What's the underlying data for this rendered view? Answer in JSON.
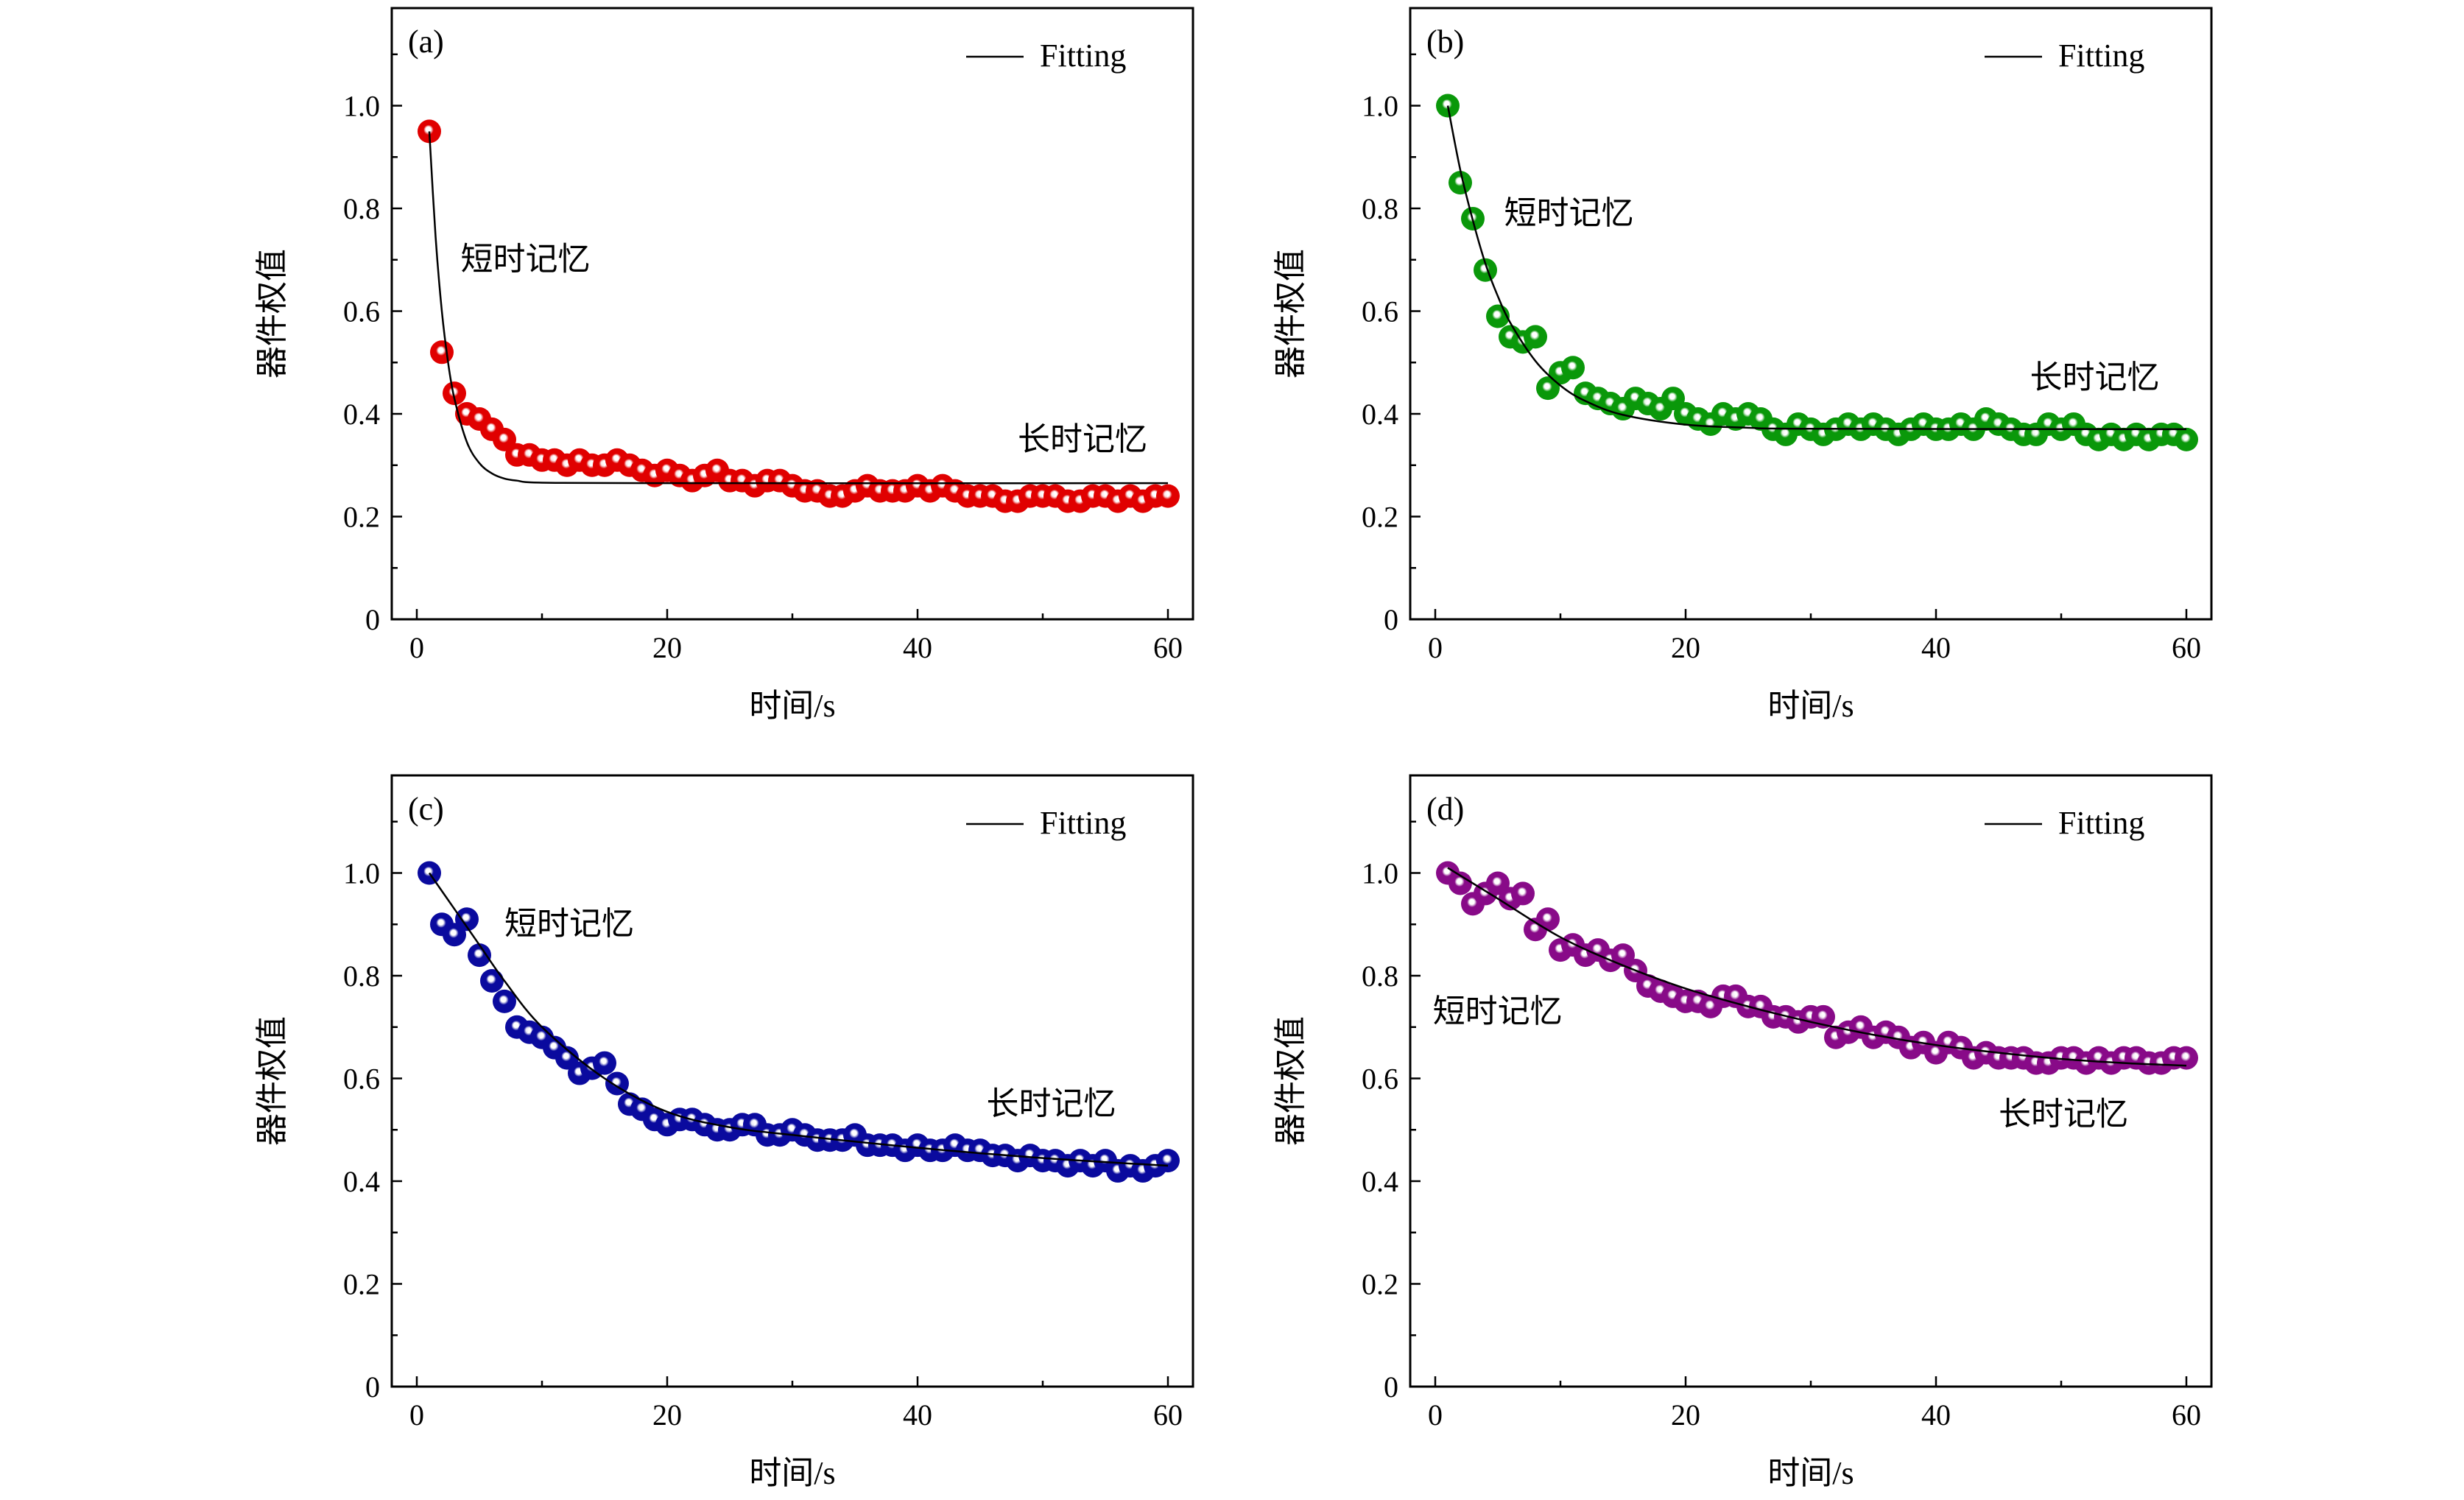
{
  "chart_data": [
    {
      "type": "scatter",
      "panel_label": "(a)",
      "xlabel": "时间/s",
      "ylabel": "器件权值",
      "xlim": [
        -2,
        62
      ],
      "ylim": [
        0,
        1.19
      ],
      "xticks": [
        0,
        20,
        40,
        60
      ],
      "xtick_labels": [
        "0",
        "20",
        "40",
        "60"
      ],
      "yticks": [
        0,
        0.2,
        0.4,
        0.6,
        0.8,
        1.0
      ],
      "ytick_labels": [
        "0",
        "0.2",
        "0.4",
        "0.6",
        "0.8",
        "1.0"
      ],
      "legend": {
        "label": "Fitting",
        "placement": "top-right"
      },
      "annotations": [
        "短时记忆",
        "长时记忆"
      ],
      "color": "#e00000",
      "x": [
        1,
        2,
        3,
        4,
        5,
        6,
        7,
        8,
        9,
        10,
        11,
        12,
        13,
        14,
        15,
        16,
        17,
        18,
        19,
        20,
        21,
        22,
        23,
        24,
        25,
        26,
        27,
        28,
        29,
        30,
        31,
        32,
        33,
        34,
        35,
        36,
        37,
        38,
        39,
        40,
        41,
        42,
        43,
        44,
        45,
        46,
        47,
        48,
        49,
        50,
        51,
        52,
        53,
        54,
        55,
        56,
        57,
        58,
        59,
        60
      ],
      "y": [
        0.95,
        0.52,
        0.44,
        0.4,
        0.39,
        0.37,
        0.35,
        0.32,
        0.32,
        0.31,
        0.31,
        0.3,
        0.31,
        0.3,
        0.3,
        0.31,
        0.3,
        0.29,
        0.28,
        0.29,
        0.28,
        0.27,
        0.28,
        0.29,
        0.27,
        0.27,
        0.26,
        0.27,
        0.27,
        0.26,
        0.25,
        0.25,
        0.24,
        0.24,
        0.25,
        0.26,
        0.25,
        0.25,
        0.25,
        0.26,
        0.25,
        0.26,
        0.25,
        0.24,
        0.24,
        0.24,
        0.23,
        0.23,
        0.24,
        0.24,
        0.24,
        0.23,
        0.23,
        0.24,
        0.24,
        0.23,
        0.24,
        0.23,
        0.24,
        0.24
      ],
      "fit": [
        [
          1,
          0.95
        ],
        [
          1.5,
          0.745
        ],
        [
          2,
          0.6
        ],
        [
          2.5,
          0.5
        ],
        [
          3,
          0.43
        ],
        [
          4,
          0.345
        ],
        [
          5,
          0.304
        ],
        [
          6,
          0.284
        ],
        [
          7,
          0.274
        ],
        [
          8,
          0.27
        ],
        [
          10,
          0.266
        ],
        [
          20,
          0.265
        ],
        [
          60,
          0.265
        ]
      ]
    },
    {
      "type": "scatter",
      "panel_label": "(b)",
      "xlabel": "时间/s",
      "ylabel": "器件权值",
      "xlim": [
        -2,
        62
      ],
      "ylim": [
        0,
        1.19
      ],
      "xticks": [
        0,
        20,
        40,
        60
      ],
      "xtick_labels": [
        "0",
        "20",
        "40",
        "60"
      ],
      "yticks": [
        0,
        0.2,
        0.4,
        0.6,
        0.8,
        1.0
      ],
      "ytick_labels": [
        "0",
        "0.2",
        "0.4",
        "0.6",
        "0.8",
        "1.0"
      ],
      "legend": {
        "label": "Fitting",
        "placement": "top-right"
      },
      "annotations": [
        "短时记忆",
        "长时记忆"
      ],
      "color": "#0a980a",
      "x": [
        1,
        2,
        3,
        4,
        5,
        6,
        7,
        8,
        9,
        10,
        11,
        12,
        13,
        14,
        15,
        16,
        17,
        18,
        19,
        20,
        21,
        22,
        23,
        24,
        25,
        26,
        27,
        28,
        29,
        30,
        31,
        32,
        33,
        34,
        35,
        36,
        37,
        38,
        39,
        40,
        41,
        42,
        43,
        44,
        45,
        46,
        47,
        48,
        49,
        50,
        51,
        52,
        53,
        54,
        55,
        56,
        57,
        58,
        59,
        60
      ],
      "y": [
        1.0,
        0.85,
        0.78,
        0.68,
        0.59,
        0.55,
        0.54,
        0.55,
        0.45,
        0.48,
        0.49,
        0.44,
        0.43,
        0.42,
        0.41,
        0.43,
        0.42,
        0.41,
        0.43,
        0.4,
        0.39,
        0.38,
        0.4,
        0.39,
        0.4,
        0.39,
        0.37,
        0.36,
        0.38,
        0.37,
        0.36,
        0.37,
        0.38,
        0.37,
        0.38,
        0.37,
        0.36,
        0.37,
        0.38,
        0.37,
        0.37,
        0.38,
        0.37,
        0.39,
        0.38,
        0.37,
        0.36,
        0.36,
        0.38,
        0.37,
        0.38,
        0.36,
        0.35,
        0.36,
        0.35,
        0.36,
        0.35,
        0.36,
        0.36,
        0.35
      ],
      "fit": [
        [
          1,
          1.0
        ],
        [
          2,
          0.875
        ],
        [
          3,
          0.777
        ],
        [
          4,
          0.693
        ],
        [
          5,
          0.629
        ],
        [
          6,
          0.577
        ],
        [
          8,
          0.503
        ],
        [
          10,
          0.455
        ],
        [
          12,
          0.425
        ],
        [
          15,
          0.398
        ],
        [
          20,
          0.379
        ],
        [
          25,
          0.373
        ],
        [
          30,
          0.371
        ],
        [
          60,
          0.37
        ]
      ]
    },
    {
      "type": "scatter",
      "panel_label": "(c)",
      "xlabel": "时间/s",
      "ylabel": "器件权值",
      "xlim": [
        -2,
        62
      ],
      "ylim": [
        0,
        1.19
      ],
      "xticks": [
        0,
        20,
        40,
        60
      ],
      "xtick_labels": [
        "0",
        "20",
        "40",
        "60"
      ],
      "yticks": [
        0,
        0.2,
        0.4,
        0.6,
        0.8,
        1.0
      ],
      "ytick_labels": [
        "0",
        "0.2",
        "0.4",
        "0.6",
        "0.8",
        "1.0"
      ],
      "legend": {
        "label": "Fitting",
        "placement": "top-right"
      },
      "annotations": [
        "短时记忆",
        "长时记忆"
      ],
      "color": "#0a0a9e",
      "x": [
        1,
        2,
        3,
        4,
        5,
        6,
        7,
        8,
        9,
        10,
        11,
        12,
        13,
        14,
        15,
        16,
        17,
        18,
        19,
        20,
        21,
        22,
        23,
        24,
        25,
        26,
        27,
        28,
        29,
        30,
        31,
        32,
        33,
        34,
        35,
        36,
        37,
        38,
        39,
        40,
        41,
        42,
        43,
        44,
        45,
        46,
        47,
        48,
        49,
        50,
        51,
        52,
        53,
        54,
        55,
        56,
        57,
        58,
        59,
        60
      ],
      "y": [
        1.0,
        0.9,
        0.88,
        0.91,
        0.84,
        0.79,
        0.75,
        0.7,
        0.69,
        0.68,
        0.66,
        0.64,
        0.61,
        0.62,
        0.63,
        0.59,
        0.55,
        0.54,
        0.52,
        0.51,
        0.52,
        0.52,
        0.51,
        0.5,
        0.5,
        0.51,
        0.51,
        0.49,
        0.49,
        0.5,
        0.49,
        0.48,
        0.48,
        0.48,
        0.49,
        0.47,
        0.47,
        0.47,
        0.46,
        0.47,
        0.46,
        0.46,
        0.47,
        0.46,
        0.46,
        0.45,
        0.45,
        0.44,
        0.45,
        0.44,
        0.44,
        0.43,
        0.44,
        0.43,
        0.44,
        0.42,
        0.43,
        0.42,
        0.43,
        0.44
      ],
      "fit": [
        [
          1,
          1.0
        ],
        [
          3,
          0.93
        ],
        [
          5,
          0.86
        ],
        [
          7,
          0.79
        ],
        [
          10,
          0.7
        ],
        [
          15,
          0.6
        ],
        [
          20,
          0.535
        ],
        [
          25,
          0.505
        ],
        [
          30,
          0.49
        ],
        [
          40,
          0.465
        ],
        [
          50,
          0.445
        ],
        [
          60,
          0.43
        ]
      ]
    },
    {
      "type": "scatter",
      "panel_label": "(d)",
      "xlabel": "时间/s",
      "ylabel": "器件权值",
      "xlim": [
        -2,
        62
      ],
      "ylim": [
        0,
        1.19
      ],
      "xticks": [
        0,
        20,
        40,
        60
      ],
      "xtick_labels": [
        "0",
        "20",
        "40",
        "60"
      ],
      "yticks": [
        0,
        0.2,
        0.4,
        0.6,
        0.8,
        1.0
      ],
      "ytick_labels": [
        "0",
        "0.2",
        "0.4",
        "0.6",
        "0.8",
        "1.0"
      ],
      "legend": {
        "label": "Fitting",
        "placement": "top-right"
      },
      "annotations": [
        "短时记忆",
        "长时记忆"
      ],
      "color": "#880a88",
      "x": [
        1,
        2,
        3,
        4,
        5,
        6,
        7,
        8,
        9,
        10,
        11,
        12,
        13,
        14,
        15,
        16,
        17,
        18,
        19,
        20,
        21,
        22,
        23,
        24,
        25,
        26,
        27,
        28,
        29,
        30,
        31,
        32,
        33,
        34,
        35,
        36,
        37,
        38,
        39,
        40,
        41,
        42,
        43,
        44,
        45,
        46,
        47,
        48,
        49,
        50,
        51,
        52,
        53,
        54,
        55,
        56,
        57,
        58,
        59,
        60
      ],
      "y": [
        1.0,
        0.98,
        0.94,
        0.96,
        0.98,
        0.95,
        0.96,
        0.89,
        0.91,
        0.85,
        0.86,
        0.84,
        0.85,
        0.83,
        0.84,
        0.81,
        0.78,
        0.77,
        0.76,
        0.75,
        0.75,
        0.74,
        0.76,
        0.76,
        0.74,
        0.74,
        0.72,
        0.72,
        0.71,
        0.72,
        0.72,
        0.68,
        0.69,
        0.7,
        0.68,
        0.69,
        0.68,
        0.66,
        0.67,
        0.65,
        0.67,
        0.66,
        0.64,
        0.65,
        0.64,
        0.64,
        0.64,
        0.63,
        0.63,
        0.64,
        0.64,
        0.63,
        0.64,
        0.63,
        0.64,
        0.64,
        0.63,
        0.63,
        0.64,
        0.64
      ],
      "fit": [
        [
          1,
          1.01
        ],
        [
          5,
          0.95
        ],
        [
          10,
          0.875
        ],
        [
          15,
          0.82
        ],
        [
          20,
          0.775
        ],
        [
          25,
          0.74
        ],
        [
          30,
          0.71
        ],
        [
          35,
          0.685
        ],
        [
          40,
          0.665
        ],
        [
          45,
          0.65
        ],
        [
          50,
          0.638
        ],
        [
          55,
          0.63
        ],
        [
          60,
          0.625
        ]
      ]
    }
  ]
}
